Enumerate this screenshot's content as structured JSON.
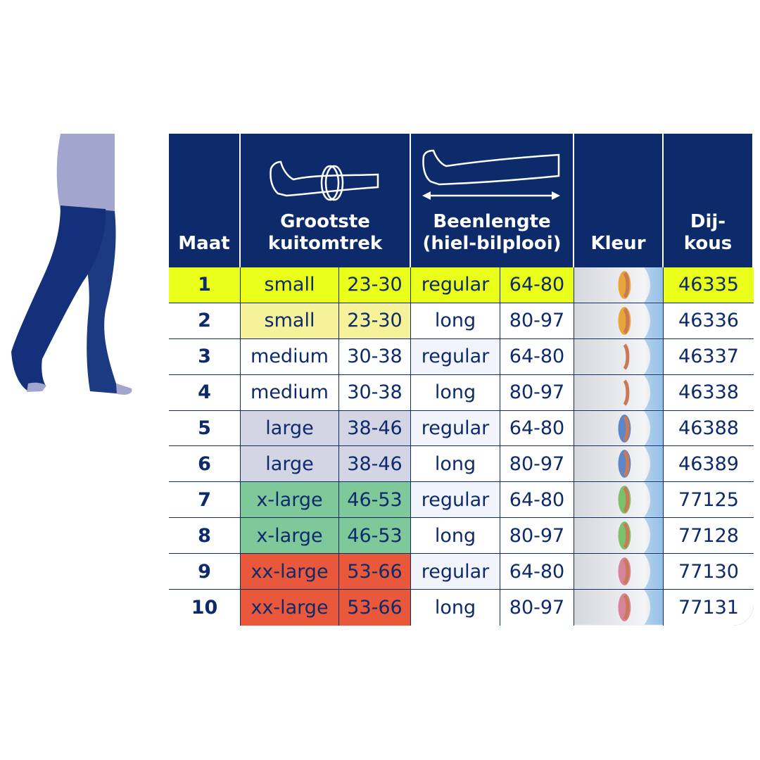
{
  "header": {
    "col_maat": "Maat",
    "col_kuit": [
      "Grootste",
      "kuitomtrek"
    ],
    "col_been": [
      "Beenlengte",
      "(hiel-bilplooi)"
    ],
    "col_kleur": "Kleur",
    "col_dij": [
      "Dij-",
      "kous"
    ]
  },
  "colors": {
    "navy": "#0d2a6b",
    "small_first": "#e9ff1a",
    "small": "#f6f29a",
    "large": "#d3d5e5",
    "xlarge": "#7ec89a",
    "xxlarge": "#e9583a",
    "light_row": "#f1f5fb"
  },
  "rows": [
    {
      "maat": "1",
      "size": "small",
      "calf": "23-30",
      "length": "regular",
      "length_range": "64-80",
      "swatch": "orange",
      "code": "46335"
    },
    {
      "maat": "2",
      "size": "small",
      "calf": "23-30",
      "length": "long",
      "length_range": "80-97",
      "swatch": "orange",
      "code": "46336"
    },
    {
      "maat": "3",
      "size": "medium",
      "calf": "30-38",
      "length": "regular",
      "length_range": "64-80",
      "swatch": "none",
      "code": "46337"
    },
    {
      "maat": "4",
      "size": "medium",
      "calf": "30-38",
      "length": "long",
      "length_range": "80-97",
      "swatch": "none",
      "code": "46338"
    },
    {
      "maat": "5",
      "size": "large",
      "calf": "38-46",
      "length": "regular",
      "length_range": "64-80",
      "swatch": "blue",
      "code": "46388"
    },
    {
      "maat": "6",
      "size": "large",
      "calf": "38-46",
      "length": "long",
      "length_range": "80-97",
      "swatch": "blue",
      "code": "46389"
    },
    {
      "maat": "7",
      "size": "x-large",
      "calf": "46-53",
      "length": "regular",
      "length_range": "64-80",
      "swatch": "green",
      "code": "77125"
    },
    {
      "maat": "8",
      "size": "x-large",
      "calf": "46-53",
      "length": "long",
      "length_range": "80-97",
      "swatch": "green",
      "code": "77128"
    },
    {
      "maat": "9",
      "size": "xx-large",
      "calf": "53-66",
      "length": "regular",
      "length_range": "64-80",
      "swatch": "red",
      "code": "77130"
    },
    {
      "maat": "10",
      "size": "xx-large",
      "calf": "53-66",
      "length": "long",
      "length_range": "80-97",
      "swatch": "red",
      "code": "77131"
    }
  ]
}
